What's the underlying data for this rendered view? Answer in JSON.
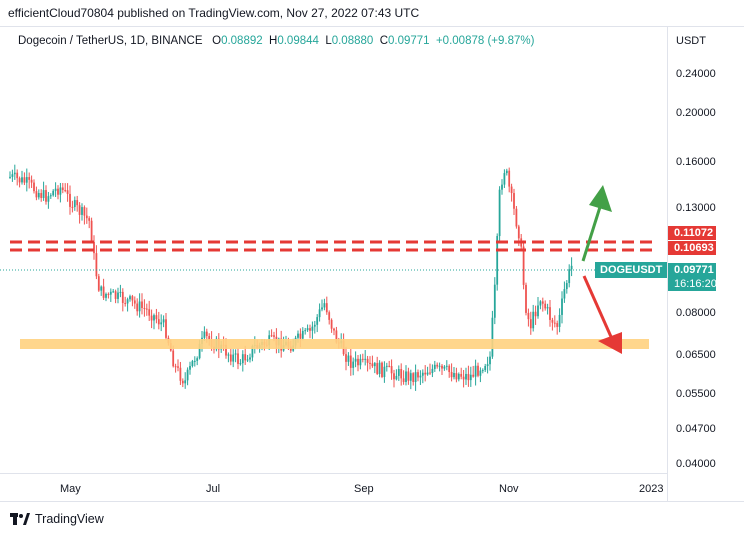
{
  "header": {
    "publisher_line": "efficientCloud70804 published on TradingView.com, Nov 27, 2022 07:43 UTC"
  },
  "legend": {
    "symbol": "Dogecoin / TetherUS, 1D, BINANCE",
    "o_label": "O",
    "o_value": "0.08892",
    "h_label": "H",
    "h_value": "0.09844",
    "l_label": "L",
    "l_value": "0.08880",
    "c_label": "C",
    "c_value": "0.09771",
    "change": "+0.00878 (+9.87%)"
  },
  "price_axis": {
    "currency": "USDT",
    "ticks": [
      "0.24000",
      "0.20000",
      "0.16000",
      "0.13000",
      "0.08000",
      "0.06500",
      "0.05500",
      "0.04700",
      "0.04000"
    ]
  },
  "time_axis": {
    "ticks": [
      "May",
      "Jul",
      "Sep",
      "Nov",
      "2023"
    ]
  },
  "price_tags": {
    "resistance_upper": "0.11072",
    "resistance_lower": "0.10693",
    "current_price": "0.09771",
    "countdown": "16:16:20",
    "symbol_tag": "DOGEUSDT"
  },
  "colors": {
    "up": "#26a69a",
    "down": "#ef5350",
    "resistance": "#e53935",
    "support_zone": "#ffd180",
    "arrow_up": "#43a047",
    "arrow_down": "#e53935"
  },
  "footer": {
    "brand": "TradingView"
  },
  "icons": {
    "logo": "tradingview-logo-icon"
  }
}
